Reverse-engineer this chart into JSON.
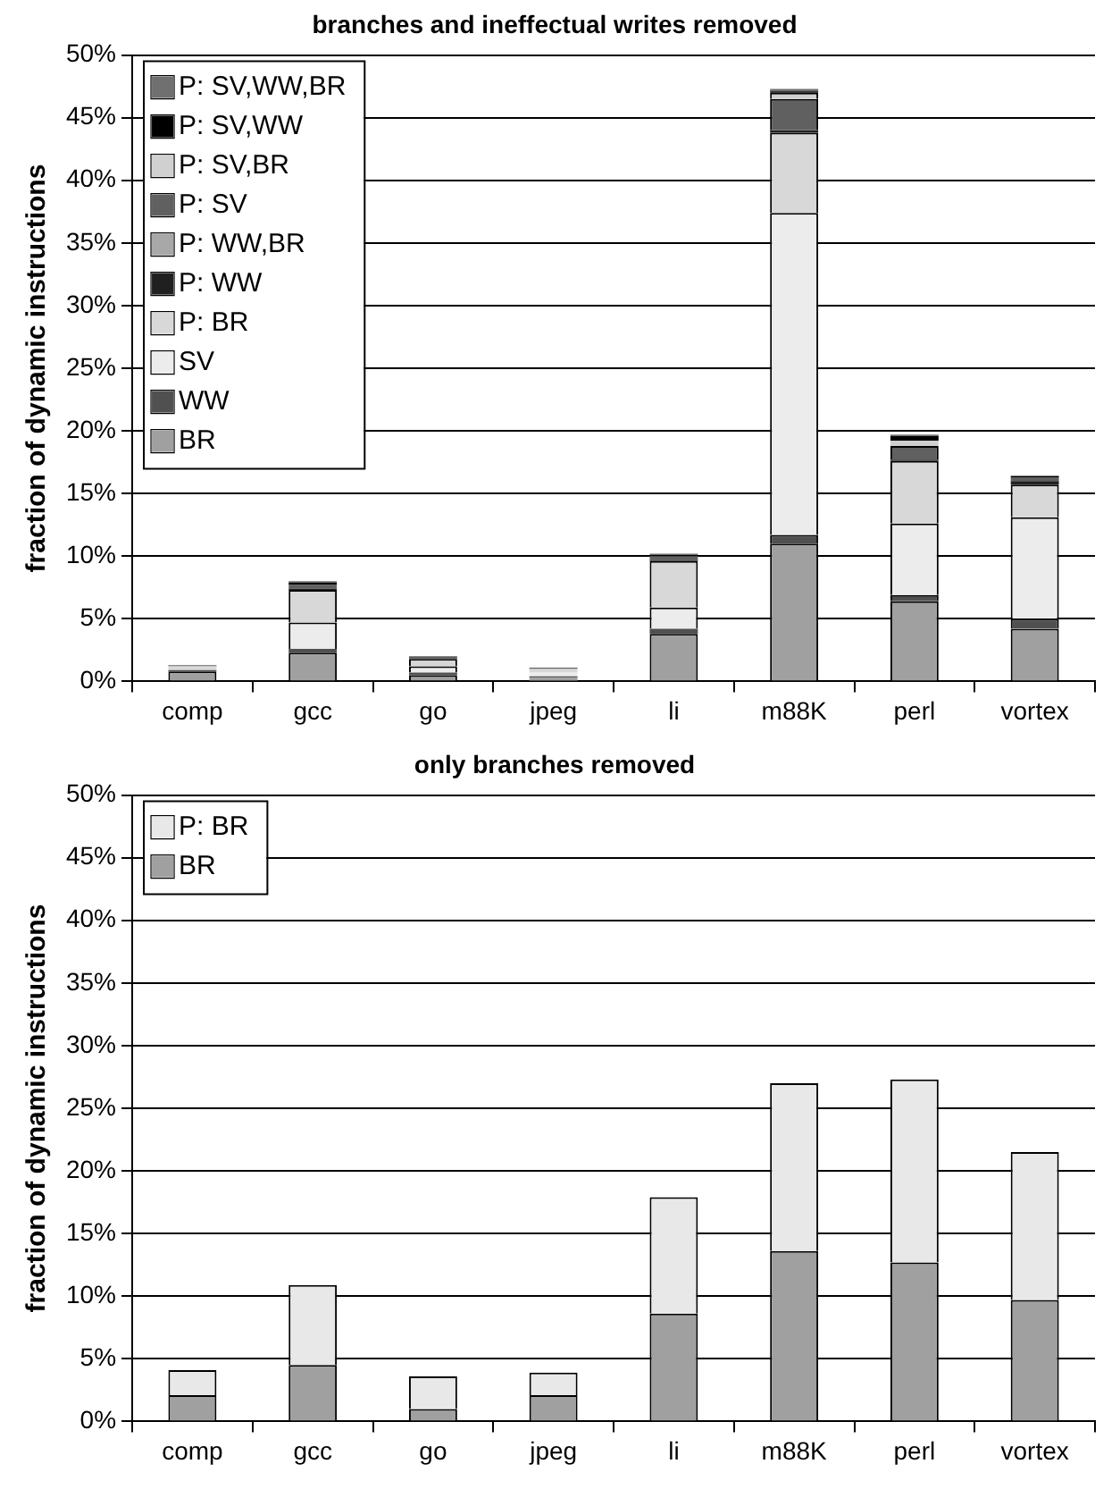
{
  "chart_data": [
    {
      "type": "bar",
      "title": "branches and ineffectual writes removed",
      "ylabel": "fraction of dynamic instructions",
      "categories": [
        "comp",
        "gcc",
        "go",
        "jpeg",
        "li",
        "m88K",
        "perl",
        "vortex"
      ],
      "stacked": true,
      "ylim": [
        0,
        50
      ],
      "yticks": [
        {
          "value": 0,
          "label": "0%"
        },
        {
          "value": 5,
          "label": "5%"
        },
        {
          "value": 10,
          "label": "10%"
        },
        {
          "value": 15,
          "label": "15%"
        },
        {
          "value": 20,
          "label": "20%"
        },
        {
          "value": 25,
          "label": "25%"
        },
        {
          "value": 30,
          "label": "30%"
        },
        {
          "value": 35,
          "label": "35%"
        },
        {
          "value": 40,
          "label": "40%"
        },
        {
          "value": 45,
          "label": "45%"
        },
        {
          "value": 50,
          "label": "50%"
        }
      ],
      "grid": "y",
      "legend": "top left",
      "series": [
        {
          "name": "BR",
          "color": "#a0a0a0",
          "values": [
            0.8,
            2.3,
            0.5,
            0.3,
            3.8,
            11.0,
            6.4,
            4.2
          ]
        },
        {
          "name": "WW",
          "color": "#505050",
          "values": [
            0.1,
            0.3,
            0.2,
            0.1,
            0.4,
            0.7,
            0.5,
            0.8
          ]
        },
        {
          "name": "SV",
          "color": "#ececec",
          "values": [
            0,
            2.1,
            0.5,
            0.3,
            1.7,
            25.7,
            5.7,
            8.1
          ]
        },
        {
          "name": "P: BR",
          "color": "#d8d8d8",
          "values": [
            0.3,
            2.6,
            0.6,
            0.3,
            3.7,
            6.4,
            5.0,
            2.6
          ]
        },
        {
          "name": "P: WW",
          "color": "#202020",
          "values": [
            0,
            0.1,
            0,
            0,
            0.1,
            0.2,
            0.1,
            0.3
          ]
        },
        {
          "name": "P: WW,BR",
          "color": "#a8a8a8",
          "values": [
            0,
            0,
            0,
            0,
            0,
            null,
            0,
            0
          ]
        },
        {
          "name": "P: SV",
          "color": "#606060",
          "values": [
            0.1,
            0.3,
            0.2,
            0.1,
            0.3,
            2.5,
            1.1,
            0.3
          ]
        },
        {
          "name": "P: SV,BR",
          "color": "#d0d0d0",
          "values": [
            0,
            0,
            0,
            0,
            0,
            0.5,
            0.4,
            0
          ]
        },
        {
          "name": "P: SV,WW",
          "color": "#000000",
          "values": [
            0,
            0.2,
            0,
            0,
            0.1,
            0.1,
            0.4,
            0.1
          ]
        },
        {
          "name": "P: SV,WW,BR",
          "color": "#707070",
          "values": [
            0,
            0.1,
            0,
            0,
            0.1,
            0.2,
            0.1,
            0
          ]
        }
      ]
    },
    {
      "type": "bar",
      "title": "only branches removed",
      "ylabel": "fraction of dynamic instructions",
      "categories": [
        "comp",
        "gcc",
        "go",
        "jpeg",
        "li",
        "m88K",
        "perl",
        "vortex"
      ],
      "stacked": true,
      "ylim": [
        0,
        50
      ],
      "yticks": [
        {
          "value": 0,
          "label": "0%"
        },
        {
          "value": 5,
          "label": "5%"
        },
        {
          "value": 10,
          "label": "10%"
        },
        {
          "value": 15,
          "label": "15%"
        },
        {
          "value": 20,
          "label": "20%"
        },
        {
          "value": 25,
          "label": "25%"
        },
        {
          "value": 30,
          "label": "30%"
        },
        {
          "value": 35,
          "label": "35%"
        },
        {
          "value": 40,
          "label": "40%"
        },
        {
          "value": 45,
          "label": "45%"
        },
        {
          "value": 50,
          "label": "50%"
        }
      ],
      "grid": "y",
      "legend": "top left",
      "series": [
        {
          "name": "BR",
          "color": "#a0a0a0",
          "values": [
            2.1,
            4.5,
            1.0,
            2.1,
            8.6,
            13.6,
            12.7,
            9.7
          ]
        },
        {
          "name": "P: BR",
          "color": "#e8e8e8",
          "values": [
            2.0,
            6.4,
            2.6,
            1.8,
            9.3,
            13.4,
            14.6,
            11.8
          ]
        }
      ]
    }
  ]
}
